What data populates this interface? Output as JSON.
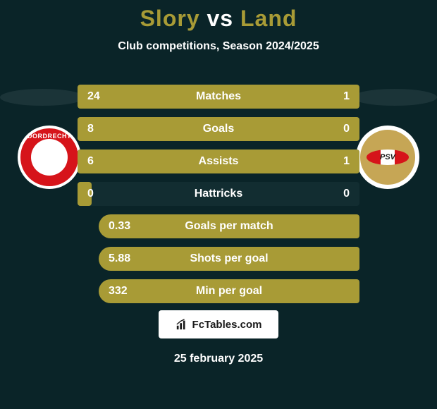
{
  "title": {
    "player1": "Slory",
    "vs": "vs",
    "player2": "Land",
    "player1_color": "#a89b36",
    "vs_color": "#ffffff",
    "player2_color": "#a89b36"
  },
  "subtitle": "Club competitions, Season 2024/2025",
  "subtitle_color": "#ffffff",
  "background_color": "#0a2428",
  "ellipse_color": "#2b4448",
  "team_left": {
    "name": "DORDRECHT",
    "outer_color": "#ffffff",
    "ring_color": "#d6141a",
    "inner_color": "#ffffff",
    "text_color": "#ffffff"
  },
  "team_right": {
    "name": "PSV",
    "outer_color": "#ffffff",
    "ring_color": "#c6a655",
    "stripes": [
      "#d6141a",
      "#ffffff",
      "#d6141a"
    ],
    "text_color": "#1a1a1a"
  },
  "bars": {
    "track_color": "#122d31",
    "fill_color": "#a89b36",
    "text_color": "#ffffff",
    "fontsize": 16,
    "rows": [
      {
        "label": "Matches",
        "left": "24",
        "right": "1",
        "fill_pct": 100
      },
      {
        "label": "Goals",
        "left": "8",
        "right": "0",
        "fill_pct": 100
      },
      {
        "label": "Assists",
        "left": "6",
        "right": "1",
        "fill_pct": 100
      },
      {
        "label": "Hattricks",
        "left": "0",
        "right": "0",
        "fill_pct": 5
      },
      {
        "label": "Goals per match",
        "left": "0.33",
        "right": "",
        "fill_pct": 100,
        "indent": true
      },
      {
        "label": "Shots per goal",
        "left": "5.88",
        "right": "",
        "fill_pct": 100,
        "indent": true
      },
      {
        "label": "Min per goal",
        "left": "332",
        "right": "",
        "fill_pct": 100,
        "indent": true
      }
    ]
  },
  "branding": {
    "text": "FcTables.com",
    "bg_color": "#ffffff",
    "text_color": "#1a1a1a"
  },
  "date": "25 february 2025",
  "date_color": "#ffffff"
}
